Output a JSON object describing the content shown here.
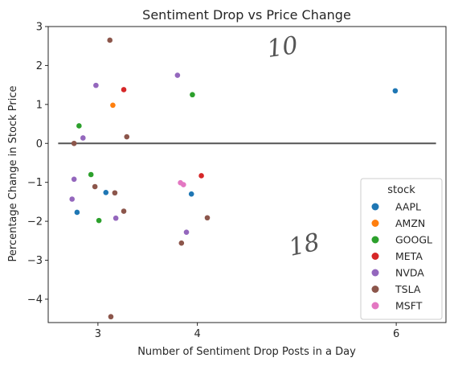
{
  "chart_data": {
    "type": "scatter",
    "title": "Sentiment Drop vs Price Change",
    "xlabel": "Number of Sentiment Drop Posts in a Day",
    "ylabel": "Percentage Change in Stock Price",
    "xlim": [
      2.5,
      6.5
    ],
    "ylim": [
      -4.6,
      3.0
    ],
    "xticks": [
      3,
      4,
      6
    ],
    "yticks": [
      -4,
      -3,
      -2,
      -1,
      0,
      1,
      2,
      3
    ],
    "grid": false,
    "reference_line_y": 0,
    "legend": {
      "title": "stock",
      "placement": "lower-right"
    },
    "annotations": [
      "10",
      "18"
    ],
    "series": [
      {
        "name": "AAPL",
        "color": "#1f77b4",
        "points": [
          [
            2.79,
            -1.77
          ],
          [
            3.08,
            -1.26
          ],
          [
            3.94,
            -1.3
          ],
          [
            5.99,
            1.35
          ]
        ]
      },
      {
        "name": "AMZN",
        "color": "#ff7f0e",
        "points": [
          [
            3.15,
            0.98
          ]
        ]
      },
      {
        "name": "GOOGL",
        "color": "#2ca02c",
        "points": [
          [
            2.81,
            0.45
          ],
          [
            2.93,
            -0.8
          ],
          [
            3.01,
            -1.98
          ],
          [
            3.95,
            1.25
          ]
        ]
      },
      {
        "name": "META",
        "color": "#d62728",
        "points": [
          [
            3.26,
            1.38
          ],
          [
            4.04,
            -0.83
          ]
        ]
      },
      {
        "name": "NVDA",
        "color": "#9467bd",
        "points": [
          [
            2.74,
            -1.43
          ],
          [
            2.76,
            -0.92
          ],
          [
            2.85,
            0.14
          ],
          [
            2.98,
            1.49
          ],
          [
            3.18,
            -1.92
          ],
          [
            3.8,
            1.75
          ],
          [
            3.89,
            -2.28
          ]
        ]
      },
      {
        "name": "TSLA",
        "color": "#8c564b",
        "points": [
          [
            2.76,
            0.0
          ],
          [
            2.97,
            -1.11
          ],
          [
            3.12,
            2.65
          ],
          [
            3.13,
            -4.45
          ],
          [
            3.17,
            -1.27
          ],
          [
            3.26,
            -1.74
          ],
          [
            3.29,
            0.17
          ],
          [
            3.84,
            -2.56
          ],
          [
            4.1,
            -1.91
          ]
        ]
      },
      {
        "name": "MSFT",
        "color": "#e377c2",
        "points": [
          [
            3.83,
            -1.01
          ],
          [
            3.86,
            -1.06
          ]
        ]
      }
    ]
  }
}
